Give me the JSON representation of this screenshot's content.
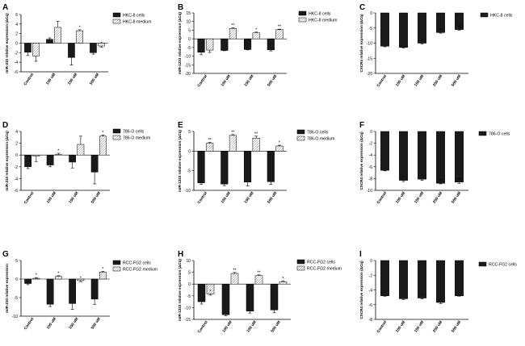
{
  "figure": {
    "colors": {
      "cells": "#1a1a1a",
      "medium": "#ffffff",
      "axis": "#000000"
    },
    "panels": [
      "A",
      "B",
      "C",
      "D",
      "E",
      "F",
      "G",
      "H",
      "I"
    ]
  },
  "chart_data": [
    {
      "id": "A",
      "type": "bar",
      "ylabel": "miR-210 relative expression (ΔCq)",
      "ylim": [
        -6,
        6
      ],
      "ticks": [
        -6,
        -4,
        -2,
        0,
        2,
        4,
        6
      ],
      "categories": [
        "Control",
        "100 uM",
        "150 uM",
        "500 uM"
      ],
      "series": [
        {
          "name": "HKC-8 cells",
          "values": [
            -1.9,
            0.8,
            -3.0,
            -2.0
          ],
          "err": [
            0.7,
            0.3,
            1.6,
            0.3
          ],
          "sig": [
            "",
            "",
            "",
            ""
          ]
        },
        {
          "name": "HKC-8 medium",
          "values": [
            -2.7,
            3.3,
            2.6,
            -0.6
          ],
          "err": [
            1.1,
            1.3,
            0.2,
            0.2
          ],
          "sig": [
            "",
            "",
            "*",
            "*"
          ]
        }
      ]
    },
    {
      "id": "B",
      "type": "bar",
      "ylabel": "miR-1233 relative expression (ΔCq)",
      "ylim": [
        -20,
        15
      ],
      "ticks": [
        -20,
        -15,
        -10,
        -5,
        0,
        5,
        10,
        15
      ],
      "categories": [
        "Control",
        "100 uM",
        "150 uM",
        "500 uM"
      ],
      "series": [
        {
          "name": "HKC-8 cells",
          "values": [
            -7.8,
            -6.7,
            -6.2,
            -6.4
          ],
          "err": [
            1.4,
            0.2,
            0.2,
            0.6
          ],
          "sig": [
            "",
            "",
            "",
            ""
          ]
        },
        {
          "name": "HKC-8 medium",
          "values": [
            -6.5,
            6.0,
            3.5,
            5.3
          ],
          "err": [
            1.4,
            0.4,
            0.4,
            0.3
          ],
          "sig": [
            "",
            "**",
            "*",
            "**"
          ]
        }
      ]
    },
    {
      "id": "C",
      "type": "bar",
      "ylabel": "CXCR4 relative expression (ΔCq)",
      "ylim": [
        -20,
        0
      ],
      "ticks": [
        -20,
        -15,
        -10,
        -5,
        0
      ],
      "categories": [
        "Control",
        "100 uM",
        "150 uM",
        "250 uM",
        "500 uM"
      ],
      "series": [
        {
          "name": "HKC-8 cells",
          "values": [
            -11.0,
            -11.4,
            -10.0,
            -6.5,
            -5.5
          ],
          "err": [
            0.2,
            0.2,
            0.2,
            0.2,
            0.2
          ],
          "sig": [
            "",
            "",
            "*",
            "**",
            "**"
          ]
        }
      ]
    },
    {
      "id": "D",
      "type": "bar",
      "ylabel": "miR-210 relative expression (ΔCq)",
      "ylim": [
        -6,
        4
      ],
      "ticks": [
        -6,
        -4,
        -2,
        0,
        2,
        4
      ],
      "categories": [
        "Control",
        "100 uM",
        "150 uM",
        "500 uM"
      ],
      "series": [
        {
          "name": "786-O cells",
          "values": [
            -2.0,
            -1.7,
            -1.2,
            -2.9
          ],
          "err": [
            0.3,
            0.3,
            1.0,
            2.0
          ],
          "sig": [
            "",
            "",
            "",
            ""
          ]
        },
        {
          "name": "786-O medium",
          "values": [
            -0.2,
            0.1,
            1.8,
            3.2
          ],
          "err": [
            0.9,
            0.2,
            1.4,
            0.2
          ],
          "sig": [
            "",
            "*",
            "",
            "*"
          ]
        }
      ]
    },
    {
      "id": "E",
      "type": "bar",
      "ylabel": "miR-1233 relative expression (ΔCq)",
      "ylim": [
        -10,
        5
      ],
      "ticks": [
        -10,
        -5,
        0,
        5
      ],
      "categories": [
        "Control",
        "100 uM",
        "150 uM",
        "500 uM"
      ],
      "series": [
        {
          "name": "786-O cells",
          "values": [
            -8.1,
            -8.4,
            -7.9,
            -7.8
          ],
          "err": [
            0.4,
            0.4,
            1.0,
            0.7
          ],
          "sig": [
            "",
            "",
            "",
            ""
          ]
        },
        {
          "name": "786-O medium",
          "values": [
            2.0,
            4.0,
            3.3,
            1.3
          ],
          "err": [
            0.2,
            0.2,
            0.5,
            0.2
          ],
          "sig": [
            "**",
            "**",
            "**",
            "*"
          ]
        }
      ]
    },
    {
      "id": "F",
      "type": "bar",
      "ylabel": "CXCR4 relative expression (ΔCq)",
      "ylim": [
        -10,
        0
      ],
      "ticks": [
        -10,
        -8,
        -6,
        -4,
        -2,
        0
      ],
      "categories": [
        "Control",
        "100 uM",
        "150 uM",
        "250 uM",
        "500 uM"
      ],
      "series": [
        {
          "name": "786-O cells",
          "values": [
            -6.6,
            -8.3,
            -8.1,
            -8.8,
            -8.6
          ],
          "err": [
            0.1,
            0.2,
            0.2,
            0.1,
            0.2
          ],
          "sig": [
            "",
            "*",
            "*",
            "**",
            "**"
          ]
        }
      ]
    },
    {
      "id": "G",
      "type": "bar",
      "ylabel": "miR-210 relative expression",
      "ylim": [
        -10,
        5
      ],
      "ticks": [
        -10,
        -5,
        0,
        5
      ],
      "categories": [
        "Control",
        "100 uM",
        "150 uM",
        "500 uM"
      ],
      "series": [
        {
          "name": "RCC-FG2 cells",
          "values": [
            -1.2,
            -6.8,
            -6.6,
            -5.4
          ],
          "err": [
            0.3,
            0.6,
            1.6,
            1.4
          ],
          "sig": [
            "",
            "",
            "",
            ""
          ]
        },
        {
          "name": "RCC-FG2 medium",
          "values": [
            0.2,
            0.7,
            -0.4,
            1.9
          ],
          "err": [
            0.2,
            0.2,
            0.3,
            0.2
          ],
          "sig": [
            "*",
            "*",
            "*",
            "*"
          ]
        }
      ]
    },
    {
      "id": "H",
      "type": "bar",
      "ylabel": "miR-1233 relative expression (ΔCq)",
      "ylim": [
        -15,
        10
      ],
      "ticks": [
        -15,
        -10,
        -5,
        0,
        5,
        10
      ],
      "categories": [
        "Control",
        "100 uM",
        "150 uM",
        "500 uM"
      ],
      "series": [
        {
          "name": "RCC-FG2 cells",
          "values": [
            -7.5,
            -13.0,
            -11.5,
            -11.0
          ],
          "err": [
            1.0,
            0.5,
            0.8,
            1.2
          ],
          "sig": [
            "",
            "",
            "",
            ""
          ]
        },
        {
          "name": "RCC-FG2 medium",
          "values": [
            -4.2,
            4.5,
            3.6,
            1.0
          ],
          "err": [
            0.5,
            0.4,
            0.3,
            0.3
          ],
          "sig": [
            "*",
            "**",
            "**",
            "*"
          ]
        }
      ]
    },
    {
      "id": "I",
      "type": "bar",
      "ylabel": "CXCR4 relative expression (ΔCq)",
      "ylim": [
        -8,
        0
      ],
      "ticks": [
        -8,
        -6,
        -4,
        -2,
        0
      ],
      "categories": [
        "Control",
        "100 uM",
        "150 uM",
        "250 uM",
        "500 uM"
      ],
      "series": [
        {
          "name": "RCC-FG2 cells",
          "values": [
            -4.8,
            -5.2,
            -5.1,
            -5.7,
            -4.8
          ],
          "err": [
            0.05,
            0.1,
            0.1,
            0.15,
            0.05
          ],
          "sig": [
            "",
            "",
            "*",
            "*",
            ""
          ]
        }
      ]
    }
  ]
}
